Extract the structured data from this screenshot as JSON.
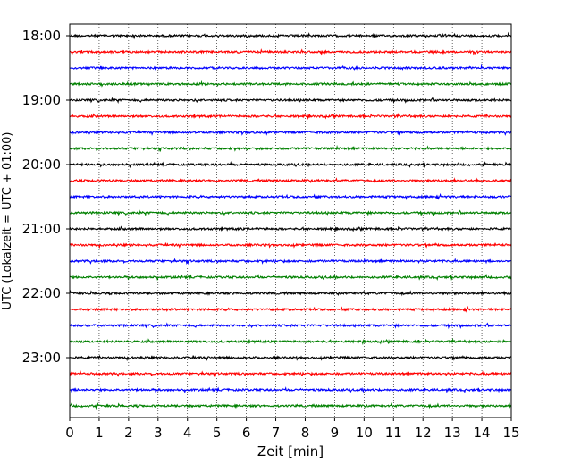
{
  "chart_data": {
    "type": "line",
    "xlabel": "Zeit  [min]",
    "ylabel": "UTC (Lokalzeit = UTC + 01:00)",
    "xlim": [
      0,
      15
    ],
    "x_ticks": [
      "0",
      "1",
      "2",
      "3",
      "4",
      "5",
      "6",
      "7",
      "8",
      "9",
      "10",
      "11",
      "12",
      "13",
      "14",
      "15"
    ],
    "y_ticks": [
      "18:00",
      "19:00",
      "20:00",
      "21:00",
      "22:00",
      "23:00"
    ],
    "grid": "vertical dotted at each minute",
    "trace_interval_min": 15,
    "trace_colors": [
      "#000000",
      "#ff0000",
      "#0000ff",
      "#008000"
    ],
    "traces": [
      {
        "time": "18:00",
        "color": "#000000"
      },
      {
        "time": "18:15",
        "color": "#ff0000"
      },
      {
        "time": "18:30",
        "color": "#0000ff"
      },
      {
        "time": "18:45",
        "color": "#008000"
      },
      {
        "time": "19:00",
        "color": "#000000"
      },
      {
        "time": "19:15",
        "color": "#ff0000"
      },
      {
        "time": "19:30",
        "color": "#0000ff"
      },
      {
        "time": "19:45",
        "color": "#008000"
      },
      {
        "time": "20:00",
        "color": "#000000"
      },
      {
        "time": "20:15",
        "color": "#ff0000"
      },
      {
        "time": "20:30",
        "color": "#0000ff"
      },
      {
        "time": "20:45",
        "color": "#008000"
      },
      {
        "time": "21:00",
        "color": "#000000"
      },
      {
        "time": "21:15",
        "color": "#ff0000"
      },
      {
        "time": "21:30",
        "color": "#0000ff"
      },
      {
        "time": "21:45",
        "color": "#008000"
      },
      {
        "time": "22:00",
        "color": "#000000"
      },
      {
        "time": "22:15",
        "color": "#ff0000"
      },
      {
        "time": "22:30",
        "color": "#0000ff"
      },
      {
        "time": "22:45",
        "color": "#008000"
      },
      {
        "time": "23:00",
        "color": "#000000"
      },
      {
        "time": "23:15",
        "color": "#ff0000"
      },
      {
        "time": "23:30",
        "color": "#0000ff"
      },
      {
        "time": "23:45",
        "color": "#008000"
      }
    ]
  }
}
